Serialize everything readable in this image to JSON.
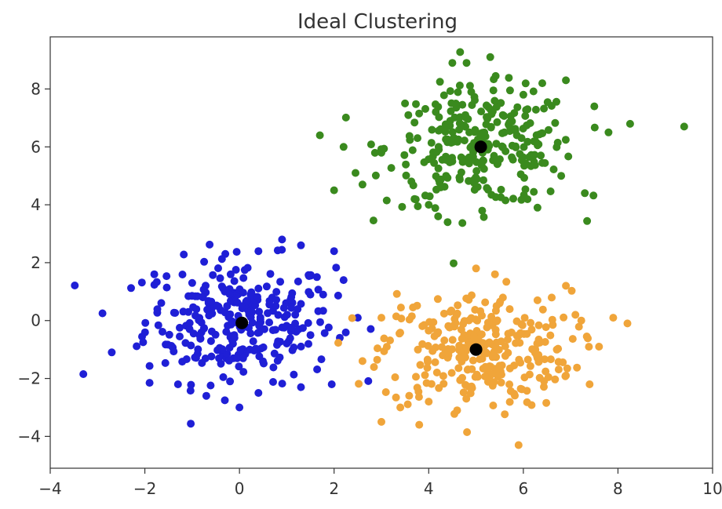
{
  "chart_data": {
    "type": "scatter",
    "title": "Ideal Clustering",
    "xlabel": "",
    "ylabel": "",
    "xlim": [
      -4,
      10
    ],
    "ylim": [
      -5.1,
      9.8
    ],
    "xticks": [
      -4,
      -2,
      0,
      2,
      4,
      6,
      8,
      10
    ],
    "yticks": [
      -4,
      -2,
      0,
      2,
      4,
      6,
      8
    ],
    "xtick_labels": [
      "−4",
      "−2",
      "0",
      "2",
      "4",
      "6",
      "8",
      "10"
    ],
    "ytick_labels": [
      "−4",
      "−2",
      "0",
      "2",
      "4",
      "6",
      "8"
    ],
    "grid": false,
    "legend": "none",
    "series": [
      {
        "color": "#1f1fd6",
        "center": [
          0,
          0
        ],
        "spread": [
          1.0,
          1.05
        ],
        "count": 300,
        "sample_points": [
          [
            -3.3,
            -1.85
          ],
          [
            -2.7,
            -1.1
          ],
          [
            -1.9,
            -2.15
          ],
          [
            -1.8,
            1.6
          ],
          [
            -1.3,
            -2.2
          ],
          [
            -0.7,
            -2.6
          ],
          [
            -0.2,
            -2.1
          ],
          [
            0.0,
            -3.0
          ],
          [
            0.4,
            -2.5
          ],
          [
            1.3,
            -2.3
          ],
          [
            1.95,
            -2.2
          ],
          [
            0.4,
            2.4
          ],
          [
            0.9,
            2.8
          ],
          [
            1.3,
            2.6
          ],
          [
            2.0,
            2.4
          ],
          [
            2.2,
            1.4
          ],
          [
            2.5,
            0.1
          ],
          [
            -0.3,
            2.3
          ],
          [
            -1.0,
            1.3
          ],
          [
            1.5,
            -0.5
          ]
        ]
      },
      {
        "color": "#3a8a1e",
        "center": [
          5.1,
          6.0
        ],
        "spread": [
          1.0,
          1.0
        ],
        "count": 300,
        "sample_points": [
          [
            1.7,
            6.4
          ],
          [
            2.2,
            6.0
          ],
          [
            2.0,
            4.5
          ],
          [
            2.6,
            4.7
          ],
          [
            3.0,
            5.8
          ],
          [
            3.5,
            7.5
          ],
          [
            3.7,
            4.2
          ],
          [
            4.0,
            4.0
          ],
          [
            4.2,
            3.6
          ],
          [
            4.4,
            3.4
          ],
          [
            4.5,
            8.9
          ],
          [
            4.8,
            8.9
          ],
          [
            5.3,
            9.1
          ],
          [
            4.9,
            7.9
          ],
          [
            6.0,
            7.8
          ],
          [
            6.4,
            8.2
          ],
          [
            6.9,
            8.3
          ],
          [
            7.5,
            7.4
          ],
          [
            7.8,
            6.5
          ],
          [
            9.4,
            6.7
          ],
          [
            7.3,
            4.4
          ],
          [
            6.3,
            3.9
          ],
          [
            6.8,
            5.0
          ],
          [
            5.6,
            6.5
          ],
          [
            4.5,
            5.5
          ]
        ]
      },
      {
        "color": "#f0a53a",
        "center": [
          5.0,
          -1.0
        ],
        "spread": [
          1.0,
          1.0
        ],
        "count": 300,
        "sample_points": [
          [
            2.6,
            -1.4
          ],
          [
            3.0,
            0.1
          ],
          [
            3.0,
            -3.5
          ],
          [
            3.4,
            -3.0
          ],
          [
            3.8,
            -3.6
          ],
          [
            4.0,
            -2.8
          ],
          [
            4.6,
            -3.1
          ],
          [
            5.2,
            -1.6
          ],
          [
            5.5,
            0.6
          ],
          [
            5.0,
            1.8
          ],
          [
            5.4,
            1.6
          ],
          [
            6.3,
            0.7
          ],
          [
            6.9,
            1.2
          ],
          [
            7.1,
            0.2
          ],
          [
            7.6,
            -0.9
          ],
          [
            7.9,
            0.1
          ],
          [
            8.2,
            -0.1
          ],
          [
            7.4,
            -2.2
          ],
          [
            6.9,
            -1.9
          ],
          [
            5.9,
            -4.3
          ],
          [
            6.3,
            -1.3
          ],
          [
            4.2,
            -0.4
          ]
        ]
      }
    ],
    "centroids": {
      "color": "#000000",
      "points": [
        [
          0.05,
          -0.08
        ],
        [
          5.1,
          6.0
        ],
        [
          5.0,
          -1.0
        ]
      ]
    }
  }
}
